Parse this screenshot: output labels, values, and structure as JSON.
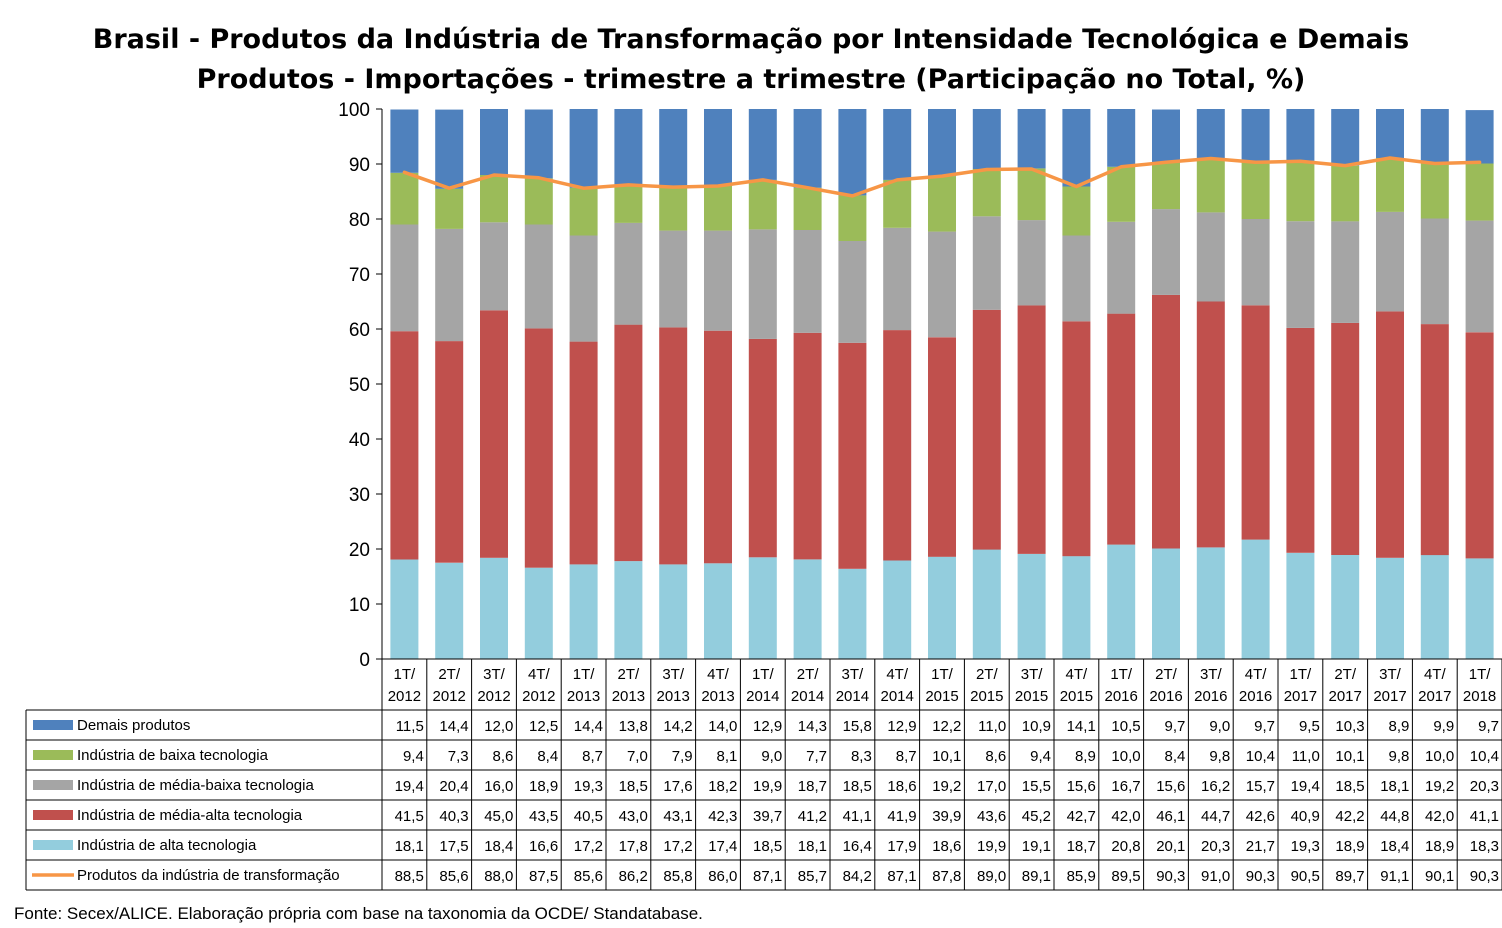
{
  "chart_data": {
    "type": "bar",
    "stacked": true,
    "title_lines": [
      "Brasil - Produtos da Indústria de Transformação por Intensidade Tecnológica e Demais",
      "Produtos - Importações - trimestre a trimestre (Participação no Total, %)"
    ],
    "categories": [
      [
        "1T/",
        "2012"
      ],
      [
        "2T/",
        "2012"
      ],
      [
        "3T/",
        "2012"
      ],
      [
        "4T/",
        "2012"
      ],
      [
        "1T/",
        "2013"
      ],
      [
        "2T/",
        "2013"
      ],
      [
        "3T/",
        "2013"
      ],
      [
        "4T/",
        "2013"
      ],
      [
        "1T/",
        "2014"
      ],
      [
        "2T/",
        "2014"
      ],
      [
        "3T/",
        "2014"
      ],
      [
        "4T/",
        "2014"
      ],
      [
        "1T/",
        "2015"
      ],
      [
        "2T/",
        "2015"
      ],
      [
        "3T/",
        "2015"
      ],
      [
        "4T/",
        "2015"
      ],
      [
        "1T/",
        "2016"
      ],
      [
        "2T/",
        "2016"
      ],
      [
        "3T/",
        "2016"
      ],
      [
        "4T/",
        "2016"
      ],
      [
        "1T/",
        "2017"
      ],
      [
        "2T/",
        "2017"
      ],
      [
        "3T/",
        "2017"
      ],
      [
        "4T/",
        "2017"
      ],
      [
        "1T/",
        "2018"
      ]
    ],
    "ylim": [
      0,
      100
    ],
    "yticks": [
      "0",
      "10",
      "20",
      "30",
      "40",
      "50",
      "60",
      "70",
      "80",
      "90",
      "100"
    ],
    "series": [
      {
        "name": "Demais produtos",
        "kind": "bar",
        "color": "#4f81bd",
        "values": [
          11.5,
          14.4,
          12.0,
          12.5,
          14.4,
          13.8,
          14.2,
          14.0,
          12.9,
          14.3,
          15.8,
          12.9,
          12.2,
          11.0,
          10.9,
          14.1,
          10.5,
          9.7,
          9.0,
          9.7,
          9.5,
          10.3,
          8.9,
          9.9,
          9.7
        ],
        "labels": [
          "11,5",
          "14,4",
          "12,0",
          "12,5",
          "14,4",
          "13,8",
          "14,2",
          "14,0",
          "12,9",
          "14,3",
          "15,8",
          "12,9",
          "12,2",
          "11,0",
          "10,9",
          "14,1",
          "10,5",
          "9,7",
          "9,0",
          "9,7",
          "9,5",
          "10,3",
          "8,9",
          "9,9",
          "9,7"
        ]
      },
      {
        "name": "Indústria de baixa tecnologia",
        "kind": "bar",
        "color": "#9bbb59",
        "values": [
          9.4,
          7.3,
          8.6,
          8.4,
          8.7,
          7.0,
          7.9,
          8.1,
          9.0,
          7.7,
          8.3,
          8.7,
          10.1,
          8.6,
          9.4,
          8.9,
          10.0,
          8.4,
          9.8,
          10.4,
          11.0,
          10.1,
          9.8,
          10.0,
          10.4
        ],
        "labels": [
          "9,4",
          "7,3",
          "8,6",
          "8,4",
          "8,7",
          "7,0",
          "7,9",
          "8,1",
          "9,0",
          "7,7",
          "8,3",
          "8,7",
          "10,1",
          "8,6",
          "9,4",
          "8,9",
          "10,0",
          "8,4",
          "9,8",
          "10,4",
          "11,0",
          "10,1",
          "9,8",
          "10,0",
          "10,4"
        ]
      },
      {
        "name": "Indústria de média-baixa tecnologia",
        "kind": "bar",
        "color": "#a5a5a5",
        "values": [
          19.4,
          20.4,
          16.0,
          18.9,
          19.3,
          18.5,
          17.6,
          18.2,
          19.9,
          18.7,
          18.5,
          18.6,
          19.2,
          17.0,
          15.5,
          15.6,
          16.7,
          15.6,
          16.2,
          15.7,
          19.4,
          18.5,
          18.1,
          19.2,
          20.3
        ],
        "labels": [
          "19,4",
          "20,4",
          "16,0",
          "18,9",
          "19,3",
          "18,5",
          "17,6",
          "18,2",
          "19,9",
          "18,7",
          "18,5",
          "18,6",
          "19,2",
          "17,0",
          "15,5",
          "15,6",
          "16,7",
          "15,6",
          "16,2",
          "15,7",
          "19,4",
          "18,5",
          "18,1",
          "19,2",
          "20,3"
        ]
      },
      {
        "name": "Indústria de média-alta tecnologia",
        "kind": "bar",
        "color": "#c0504d",
        "values": [
          41.5,
          40.3,
          45.0,
          43.5,
          40.5,
          43.0,
          43.1,
          42.3,
          39.7,
          41.2,
          41.1,
          41.9,
          39.9,
          43.6,
          45.2,
          42.7,
          42.0,
          46.1,
          44.7,
          42.6,
          40.9,
          42.2,
          44.8,
          42.0,
          41.1
        ],
        "labels": [
          "41,5",
          "40,3",
          "45,0",
          "43,5",
          "40,5",
          "43,0",
          "43,1",
          "42,3",
          "39,7",
          "41,2",
          "41,1",
          "41,9",
          "39,9",
          "43,6",
          "45,2",
          "42,7",
          "42,0",
          "46,1",
          "44,7",
          "42,6",
          "40,9",
          "42,2",
          "44,8",
          "42,0",
          "41,1"
        ]
      },
      {
        "name": "Indústria de alta tecnologia",
        "kind": "bar",
        "color": "#93cddd",
        "values": [
          18.1,
          17.5,
          18.4,
          16.6,
          17.2,
          17.8,
          17.2,
          17.4,
          18.5,
          18.1,
          16.4,
          17.9,
          18.6,
          19.9,
          19.1,
          18.7,
          20.8,
          20.1,
          20.3,
          21.7,
          19.3,
          18.9,
          18.4,
          18.9,
          18.3
        ],
        "labels": [
          "18,1",
          "17,5",
          "18,4",
          "16,6",
          "17,2",
          "17,8",
          "17,2",
          "17,4",
          "18,5",
          "18,1",
          "16,4",
          "17,9",
          "18,6",
          "19,9",
          "19,1",
          "18,7",
          "20,8",
          "20,1",
          "20,3",
          "21,7",
          "19,3",
          "18,9",
          "18,4",
          "18,9",
          "18,3"
        ]
      },
      {
        "name": "Produtos da indústria de transformação",
        "kind": "line",
        "color": "#f79646",
        "values": [
          88.5,
          85.6,
          88.0,
          87.5,
          85.6,
          86.2,
          85.8,
          86.0,
          87.1,
          85.7,
          84.2,
          87.1,
          87.8,
          89.0,
          89.1,
          85.9,
          89.5,
          90.3,
          91.0,
          90.3,
          90.5,
          89.7,
          91.1,
          90.1,
          90.3
        ],
        "labels": [
          "88,5",
          "85,6",
          "88,0",
          "87,5",
          "85,6",
          "86,2",
          "85,8",
          "86,0",
          "87,1",
          "85,7",
          "84,2",
          "87,1",
          "87,8",
          "89,0",
          "89,1",
          "85,9",
          "89,5",
          "90,3",
          "91,0",
          "90,3",
          "90,5",
          "89,7",
          "91,1",
          "90,1",
          "90,3"
        ]
      }
    ],
    "stack_order_bottom_to_top": [
      4,
      3,
      2,
      1,
      0
    ],
    "grid": false,
    "legend": "data-table"
  },
  "source_text": "Fonte: Secex/ALICE. Elaboração própria com base na taxonomia da OCDE/ Standatabase."
}
